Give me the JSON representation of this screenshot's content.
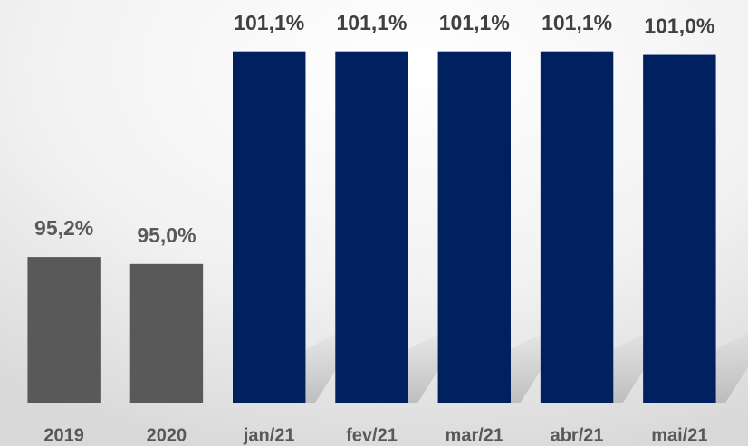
{
  "chart_data": {
    "type": "bar",
    "categories": [
      "2019",
      "2020",
      "jan/21",
      "fev/21",
      "mar/21",
      "abr/21",
      "mai/21"
    ],
    "values": [
      95.2,
      95.0,
      101.1,
      101.1,
      101.1,
      101.1,
      101.0
    ],
    "value_labels": [
      "95,2%",
      "95,0%",
      "101,1%",
      "101,1%",
      "101,1%",
      "101,1%",
      "101,0%"
    ],
    "colors": [
      "#595959",
      "#595959",
      "#002060",
      "#002060",
      "#002060",
      "#002060",
      "#002060"
    ],
    "ylim": [
      91,
      102
    ],
    "grid": false
  }
}
